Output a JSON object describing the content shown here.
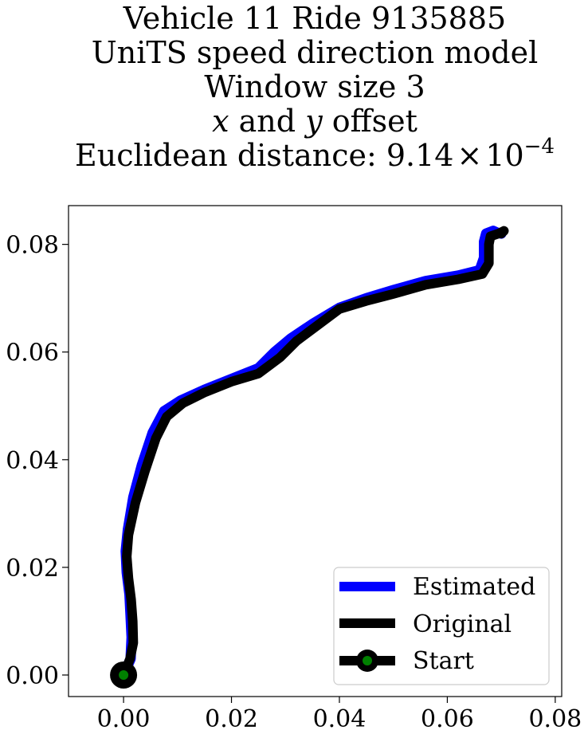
{
  "chart_data": {
    "type": "line",
    "title_lines": [
      "Vehicle 11 Ride 9135885",
      "UniTS speed direction model",
      "Window size 3"
    ],
    "title_offset_line": {
      "var_x": "x",
      "mid": " and ",
      "var_y": "y",
      "tail": " offset"
    },
    "title_distance": {
      "prefix": "Euclidean distance: 9.14",
      "times": "×",
      "base": "10",
      "exponent": "−4"
    },
    "xlabel": "",
    "ylabel": "",
    "xlim": [
      -0.0102,
      0.0812
    ],
    "ylim": [
      -0.004,
      0.0872
    ],
    "x_ticks": [
      0.0,
      0.02,
      0.04,
      0.06,
      0.08
    ],
    "x_tick_labels": [
      "0.00",
      "0.02",
      "0.04",
      "0.06",
      "0.08"
    ],
    "y_ticks": [
      0.0,
      0.02,
      0.04,
      0.06,
      0.08
    ],
    "y_tick_labels": [
      "0.00",
      "0.02",
      "0.04",
      "0.06",
      "0.08"
    ],
    "grid": false,
    "legend_position": "lower-right",
    "series": [
      {
        "name": "Estimated",
        "color": "#0000ff",
        "x": [
          0.0,
          0.0013,
          0.0015,
          0.0013,
          0.0011,
          0.0006,
          0.0004,
          0.0008,
          0.0018,
          0.0034,
          0.0054,
          0.0075,
          0.0106,
          0.015,
          0.02,
          0.025,
          0.028,
          0.031,
          0.035,
          0.04,
          0.045,
          0.05,
          0.056,
          0.062,
          0.066,
          0.0668,
          0.0668,
          0.0672,
          0.0685,
          0.0692,
          0.07
        ],
        "y": [
          0.0,
          0.003,
          0.007,
          0.011,
          0.015,
          0.019,
          0.023,
          0.027,
          0.033,
          0.039,
          0.045,
          0.049,
          0.051,
          0.053,
          0.055,
          0.057,
          0.06,
          0.0625,
          0.0652,
          0.0682,
          0.07,
          0.0715,
          0.0732,
          0.0742,
          0.0752,
          0.0775,
          0.0805,
          0.082,
          0.0825,
          0.0822,
          0.082
        ]
      },
      {
        "name": "Original",
        "color": "#000000",
        "x": [
          0.0,
          0.0012,
          0.0018,
          0.0017,
          0.0014,
          0.0009,
          0.0006,
          0.0009,
          0.0022,
          0.004,
          0.006,
          0.008,
          0.011,
          0.015,
          0.02,
          0.025,
          0.029,
          0.032,
          0.036,
          0.04,
          0.045,
          0.05,
          0.056,
          0.062,
          0.0665,
          0.0677,
          0.0677,
          0.068,
          0.0695,
          0.0705,
          0.07
        ],
        "y": [
          0.0,
          0.003,
          0.006,
          0.01,
          0.014,
          0.018,
          0.022,
          0.026,
          0.032,
          0.038,
          0.044,
          0.048,
          0.0505,
          0.0525,
          0.0545,
          0.056,
          0.059,
          0.062,
          0.065,
          0.068,
          0.0695,
          0.0708,
          0.0725,
          0.0735,
          0.0745,
          0.0765,
          0.08,
          0.0815,
          0.082,
          0.0825,
          0.082
        ]
      }
    ],
    "start": {
      "name": "Start",
      "x": 0.0,
      "y": 0.0,
      "marker_color": "#008000",
      "marker_edge": "#000000"
    }
  }
}
